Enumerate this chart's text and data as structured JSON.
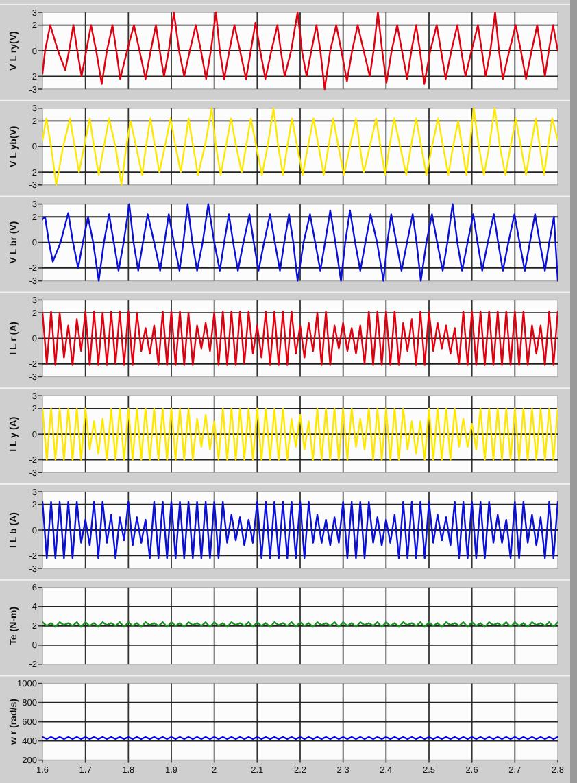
{
  "chart_data": [
    {
      "type": "line",
      "ylabel": "V L ry(V)",
      "xlim": [
        1.6,
        2.8
      ],
      "xticks": [
        1.6,
        1.7,
        1.8,
        1.9,
        2,
        2.1,
        2.2,
        2.3,
        2.4,
        2.5,
        2.6,
        2.7,
        2.8
      ],
      "ylim": [
        -3,
        3
      ],
      "yticks": [
        -3,
        -2,
        0,
        2,
        3
      ],
      "grid": true,
      "tick_labels": "y",
      "x": [
        1.6,
        1.606,
        1.618,
        1.636,
        1.653,
        1.662,
        1.672,
        1.681,
        1.691,
        1.702,
        1.713,
        1.725,
        1.738,
        1.75,
        1.763,
        1.772,
        1.781,
        1.797,
        1.813,
        1.826,
        1.84,
        1.852,
        1.864,
        1.873,
        1.883,
        1.894,
        1.906,
        1.918,
        1.93,
        1.943,
        1.957,
        1.969,
        1.981,
        1.992,
        2.004,
        2.013,
        2.023,
        2.035,
        2.047,
        2.06,
        2.074,
        2.085,
        2.096,
        2.107,
        2.119,
        2.133,
        2.147,
        2.155,
        2.164,
        2.179,
        2.194,
        2.204,
        2.215,
        2.226,
        2.238,
        2.247,
        2.257,
        2.27,
        2.284,
        2.296,
        2.309,
        2.321,
        2.334,
        2.348,
        2.362,
        2.371,
        2.381,
        2.391,
        2.401,
        2.413,
        2.426,
        2.437,
        2.449,
        2.459,
        2.47,
        2.479,
        2.489,
        2.503,
        2.518,
        2.528,
        2.539,
        2.552,
        2.566,
        2.575,
        2.585,
        2.599,
        2.614,
        2.623,
        2.632,
        2.643,
        2.654,
        2.663,
        2.672,
        2.687,
        2.702,
        2.714,
        2.726,
        2.739,
        2.752,
        2.761,
        2.77,
        2.779,
        2.789,
        2.8
      ],
      "series": [
        {
          "color": "#e00010",
          "values": [
            -1.8,
            0,
            2,
            0,
            -1.5,
            0,
            2,
            0,
            -2,
            0,
            2,
            0,
            -2.6,
            0,
            2,
            0,
            -2.2,
            0,
            2,
            0,
            -2.2,
            0,
            2,
            0,
            -2,
            0,
            3,
            0,
            -2,
            0,
            2,
            0,
            -2.2,
            0,
            3,
            0,
            -2.2,
            0,
            2,
            0,
            -2.2,
            0,
            2.2,
            0,
            -2.2,
            0,
            2,
            0,
            -2,
            0,
            3,
            0,
            -2,
            0,
            2,
            0,
            -3,
            0,
            2,
            0,
            -2.4,
            0,
            2,
            0,
            -2,
            0,
            3,
            0,
            -2.5,
            0,
            2,
            0,
            -2.2,
            0,
            2,
            0,
            -2.6,
            0,
            2,
            0,
            -2.2,
            0,
            2,
            0,
            -2,
            0,
            2,
            0,
            -2,
            0,
            3,
            0,
            -2.2,
            0,
            2,
            0,
            -2.2,
            0,
            2,
            0,
            -2,
            0,
            2,
            0
          ]
        }
      ]
    },
    {
      "type": "line",
      "ylabel": "V L yb(V)",
      "xlim": [
        1.6,
        2.8
      ],
      "xticks": [
        1.6,
        1.7,
        1.8,
        1.9,
        2,
        2.1,
        2.2,
        2.3,
        2.4,
        2.5,
        2.6,
        2.7,
        2.8
      ],
      "ylim": [
        -3,
        3
      ],
      "yticks": [
        -3,
        -2,
        0,
        2,
        3
      ],
      "grid": true,
      "tick_labels": "y",
      "x": [
        1.6,
        1.609,
        1.62,
        1.632,
        1.648,
        1.664,
        1.675,
        1.685,
        1.697,
        1.71,
        1.72,
        1.731,
        1.743,
        1.755,
        1.77,
        1.784,
        1.795,
        1.805,
        1.818,
        1.832,
        1.841,
        1.851,
        1.862,
        1.872,
        1.885,
        1.898,
        1.91,
        1.922,
        1.931,
        1.94,
        1.951,
        1.962,
        1.978,
        1.994,
        2.004,
        2.015,
        2.027,
        2.039,
        2.051,
        2.064,
        2.074,
        2.085,
        2.098,
        2.111,
        2.124,
        2.138,
        2.149,
        2.16,
        2.17,
        2.181,
        2.193,
        2.206,
        2.218,
        2.231,
        2.243,
        2.255,
        2.266,
        2.277,
        2.289,
        2.302,
        2.316,
        2.33,
        2.339,
        2.348,
        2.362,
        2.377,
        2.387,
        2.398,
        2.408,
        2.419,
        2.433,
        2.447,
        2.458,
        2.47,
        2.482,
        2.494,
        2.507,
        2.521,
        2.533,
        2.545,
        2.556,
        2.568,
        2.577,
        2.587,
        2.595,
        2.604,
        2.616,
        2.628,
        2.64,
        2.653,
        2.665,
        2.678,
        2.69,
        2.702,
        2.714,
        2.726,
        2.737,
        2.749,
        2.758,
        2.768,
        2.777,
        2.787,
        2.8
      ],
      "series": [
        {
          "color": "#ffe800",
          "values": [
            0.5,
            2.2,
            0,
            -3,
            0,
            2.2,
            0,
            -2,
            0,
            2.2,
            0,
            -2.2,
            0,
            2.2,
            0,
            -3,
            0,
            2,
            0,
            -2.2,
            0,
            2.2,
            0,
            -2,
            0,
            2.2,
            0,
            -2,
            0,
            2.2,
            0,
            -2.2,
            0,
            3,
            0,
            -2.2,
            0,
            2.2,
            0,
            -2,
            0,
            2.2,
            0,
            -2.2,
            0,
            3,
            0,
            -2.2,
            0,
            2.2,
            0,
            -2.2,
            0,
            2.2,
            0,
            -2.2,
            0,
            2.2,
            0,
            -2.2,
            0,
            2.2,
            0,
            -2,
            0,
            2.2,
            0,
            -2.2,
            0,
            2.2,
            0,
            -2.2,
            0,
            2.2,
            0,
            -2.2,
            0,
            2.2,
            0,
            -2.2,
            0,
            2,
            0,
            -2.2,
            0,
            3,
            0,
            -2.2,
            0,
            3,
            0,
            -2.2,
            0,
            2.2,
            0,
            -2.2,
            0,
            2.2,
            0,
            -2.2,
            0,
            2.2,
            0.5
          ]
        }
      ]
    },
    {
      "type": "line",
      "ylabel": "V L br (V)",
      "xlim": [
        1.6,
        2.8
      ],
      "xticks": [
        1.6,
        1.7,
        1.8,
        1.9,
        2,
        2.1,
        2.2,
        2.3,
        2.4,
        2.5,
        2.6,
        2.7,
        2.8
      ],
      "ylim": [
        -3,
        3
      ],
      "yticks": [
        -3,
        -2,
        0,
        2,
        3
      ],
      "grid": true,
      "tick_labels": "y",
      "x": [
        1.6,
        1.606,
        1.615,
        1.624,
        1.642,
        1.66,
        1.671,
        1.683,
        1.694,
        1.706,
        1.718,
        1.731,
        1.743,
        1.755,
        1.766,
        1.777,
        1.789,
        1.802,
        1.812,
        1.823,
        1.834,
        1.845,
        1.86,
        1.874,
        1.884,
        1.894,
        1.906,
        1.919,
        1.928,
        1.938,
        1.949,
        1.96,
        1.973,
        1.986,
        2,
        2.013,
        2.023,
        2.034,
        2.044,
        2.055,
        2.068,
        2.082,
        2.092,
        2.103,
        2.116,
        2.13,
        2.141,
        2.153,
        2.163,
        2.174,
        2.184,
        2.194,
        2.208,
        2.223,
        2.235,
        2.247,
        2.258,
        2.27,
        2.282,
        2.295,
        2.305,
        2.316,
        2.328,
        2.34,
        2.352,
        2.364,
        2.379,
        2.394,
        2.403,
        2.412,
        2.424,
        2.436,
        2.449,
        2.462,
        2.471,
        2.481,
        2.494,
        2.507,
        2.519,
        2.532,
        2.543,
        2.555,
        2.566,
        2.577,
        2.59,
        2.603,
        2.613,
        2.624,
        2.637,
        2.651,
        2.661,
        2.672,
        2.685,
        2.699,
        2.711,
        2.723,
        2.735,
        2.747,
        2.758,
        2.77,
        2.78,
        2.791,
        2.8
      ],
      "series": [
        {
          "color": "#0a10d8",
          "values": [
            1.8,
            2,
            0,
            -1.5,
            0,
            2.3,
            0,
            -2,
            0,
            2,
            0,
            -3,
            0,
            2.2,
            0,
            -2.2,
            0,
            3,
            0,
            -2.2,
            0,
            2.2,
            0,
            -2.2,
            0,
            2.2,
            0,
            -2.2,
            0,
            3,
            0,
            -2.2,
            0,
            3,
            0,
            -2.2,
            0,
            2.2,
            0,
            -2.2,
            0,
            2.2,
            0,
            -2.2,
            0,
            2.2,
            0,
            -2.2,
            0,
            2.2,
            0,
            -3,
            0,
            2.2,
            0,
            -2.2,
            0,
            2.5,
            0,
            -3,
            0,
            2.5,
            0,
            -2.2,
            0,
            2.2,
            0,
            -3,
            0,
            2.2,
            0,
            -2.2,
            0,
            2.2,
            0,
            -3,
            0,
            2.2,
            0,
            -2.2,
            0,
            3,
            0,
            -2.2,
            0,
            2.2,
            0,
            -2.2,
            0,
            2.2,
            0,
            -2.2,
            0,
            2.2,
            0,
            -2.2,
            0,
            2.2,
            0,
            -2.2,
            0,
            2,
            -3
          ]
        }
      ]
    },
    {
      "type": "line",
      "ylabel": "I L r (A)",
      "xlim": [
        1.6,
        2.8
      ],
      "xticks": [
        1.6,
        1.7,
        1.8,
        1.9,
        2,
        2.1,
        2.2,
        2.3,
        2.4,
        2.5,
        2.6,
        2.7,
        2.8
      ],
      "ylim": [
        -3,
        3
      ],
      "yticks": [
        -3,
        -2,
        0,
        2,
        3
      ],
      "grid": true,
      "tick_labels": "y",
      "x": [
        1.6,
        1.61,
        1.62,
        1.63,
        1.64,
        1.65,
        1.66,
        1.67,
        1.68,
        1.69,
        1.7,
        1.71,
        1.72,
        1.73,
        1.74,
        1.75,
        1.76,
        1.77,
        1.78,
        1.79,
        1.8,
        1.81,
        1.82,
        1.83,
        1.84,
        1.85,
        1.86,
        1.87,
        1.88,
        1.89,
        1.9,
        1.91,
        1.92,
        1.93,
        1.94,
        1.95,
        1.96,
        1.97,
        1.98,
        1.99,
        2,
        2.01,
        2.02,
        2.03,
        2.04,
        2.05,
        2.06,
        2.07,
        2.08,
        2.09,
        2.1,
        2.11,
        2.12,
        2.13,
        2.14,
        2.15,
        2.16,
        2.17,
        2.18,
        2.19,
        2.2,
        2.21,
        2.22,
        2.23,
        2.24,
        2.25,
        2.26,
        2.27,
        2.28,
        2.29,
        2.3,
        2.31,
        2.32,
        2.33,
        2.34,
        2.35,
        2.36,
        2.37,
        2.38,
        2.39,
        2.4,
        2.41,
        2.42,
        2.43,
        2.44,
        2.45,
        2.46,
        2.47,
        2.48,
        2.49,
        2.5,
        2.51,
        2.52,
        2.53,
        2.54,
        2.55,
        2.56,
        2.57,
        2.58,
        2.59,
        2.6,
        2.61,
        2.62,
        2.63,
        2.64,
        2.65,
        2.66,
        2.67,
        2.68,
        2.69,
        2.7,
        2.71,
        2.72,
        2.73,
        2.74,
        2.75,
        2.76,
        2.77,
        2.78,
        2.79,
        2.8
      ],
      "series": [
        {
          "color": "#e00010",
          "values": [
            2,
            -2,
            2.1,
            -2.1,
            2,
            -1.5,
            1,
            -2.1,
            1.5,
            -1,
            2.1,
            -2.1,
            2.1,
            -2.1,
            2,
            -2.1,
            2.1,
            -2,
            2.1,
            -2.1,
            2.1,
            -2.1,
            2,
            -1,
            0.8,
            -1.2,
            1,
            -2.1,
            2.1,
            -2.1,
            2.1,
            -2.1,
            2.1,
            -2.1,
            2,
            -2.1,
            1,
            -0.8,
            1.2,
            -1,
            2,
            -2.1,
            2.1,
            -2.1,
            2.1,
            -2.1,
            2.1,
            -2,
            2.1,
            -1.2,
            1,
            -1.5,
            2.1,
            -2.1,
            2.1,
            -2.1,
            2.1,
            -2.1,
            2.1,
            -1.2,
            1,
            -1.5,
            1.2,
            -1,
            2,
            -2.1,
            2.1,
            -2.1,
            1,
            -0.8,
            1.2,
            -1,
            0.8,
            -1.2,
            1,
            -2,
            2.1,
            -2.1,
            2.1,
            -2.1,
            2.1,
            -2.1,
            2.1,
            -2.1,
            1.2,
            -1,
            1.5,
            -2.1,
            2.1,
            -2.1,
            2.1,
            -1,
            1.2,
            -0.8,
            1,
            -1.2,
            0.8,
            -2,
            2.1,
            -2.1,
            2.1,
            -2.1,
            2.1,
            -2.1,
            2.1,
            -2.1,
            2.1,
            -2.1,
            2.1,
            -2.1,
            2.1,
            -2.1,
            2.1,
            -2.1,
            1,
            -1.2,
            1,
            -2.1,
            2.1,
            -2.1,
            2.1
          ]
        }
      ]
    },
    {
      "type": "line",
      "ylabel": "I L y (A)",
      "xlim": [
        1.6,
        2.8
      ],
      "xticks": [
        1.6,
        1.7,
        1.8,
        1.9,
        2,
        2.1,
        2.2,
        2.3,
        2.4,
        2.5,
        2.6,
        2.7,
        2.8
      ],
      "ylim": [
        -3,
        3
      ],
      "yticks": [
        -3,
        -2,
        0,
        2,
        3
      ],
      "grid": true,
      "tick_labels": "y",
      "x": [
        1.6,
        1.61,
        1.62,
        1.63,
        1.64,
        1.65,
        1.66,
        1.67,
        1.68,
        1.69,
        1.7,
        1.71,
        1.72,
        1.73,
        1.74,
        1.75,
        1.76,
        1.77,
        1.78,
        1.79,
        1.8,
        1.81,
        1.82,
        1.83,
        1.84,
        1.85,
        1.86,
        1.87,
        1.88,
        1.89,
        1.9,
        1.91,
        1.92,
        1.93,
        1.94,
        1.95,
        1.96,
        1.97,
        1.98,
        1.99,
        2,
        2.01,
        2.02,
        2.03,
        2.04,
        2.05,
        2.06,
        2.07,
        2.08,
        2.09,
        2.1,
        2.11,
        2.12,
        2.13,
        2.14,
        2.15,
        2.16,
        2.17,
        2.18,
        2.19,
        2.2,
        2.21,
        2.22,
        2.23,
        2.24,
        2.25,
        2.26,
        2.27,
        2.28,
        2.29,
        2.3,
        2.31,
        2.32,
        2.33,
        2.34,
        2.35,
        2.36,
        2.37,
        2.38,
        2.39,
        2.4,
        2.41,
        2.42,
        2.43,
        2.44,
        2.45,
        2.46,
        2.47,
        2.48,
        2.49,
        2.5,
        2.51,
        2.52,
        2.53,
        2.54,
        2.55,
        2.56,
        2.57,
        2.58,
        2.59,
        2.6,
        2.61,
        2.62,
        2.63,
        2.64,
        2.65,
        2.66,
        2.67,
        2.68,
        2.69,
        2.7,
        2.71,
        2.72,
        2.73,
        2.74,
        2.75,
        2.76,
        2.77,
        2.78,
        2.79,
        2.8
      ],
      "series": [
        {
          "color": "#ffe800",
          "values": [
            2,
            -2,
            2,
            -2,
            2,
            -2,
            2,
            -2,
            2,
            -2,
            2,
            -1.2,
            1,
            -1.5,
            1.2,
            -2,
            2,
            -2,
            2,
            -2,
            2,
            -2,
            2,
            -2,
            2,
            -2,
            2,
            -2,
            2,
            -2,
            2,
            -2,
            2,
            -2,
            2,
            -2,
            1.2,
            -1,
            1.5,
            -1.2,
            1,
            -2,
            2,
            -2,
            2,
            -2,
            2,
            -2,
            2,
            -2,
            2,
            -2,
            2,
            -2,
            2,
            -2,
            2,
            -2,
            1.2,
            -1,
            1.5,
            -1.2,
            1,
            -2,
            2,
            -2,
            2,
            -2,
            2,
            -2,
            2,
            -2,
            2,
            -1,
            1.2,
            -1.2,
            2,
            -2,
            2,
            -2,
            2,
            -2,
            2,
            -2,
            2,
            -1.2,
            1,
            -1.5,
            1,
            -2,
            2,
            -2,
            2,
            -2,
            2,
            -2,
            2,
            -1,
            1.2,
            -1,
            0.8,
            -1.2,
            2,
            -2,
            2,
            -2,
            2,
            -2,
            2,
            -2,
            2,
            -2,
            2,
            -2,
            2,
            -2,
            2,
            -2,
            2,
            -2,
            2
          ]
        }
      ]
    },
    {
      "type": "line",
      "ylabel": "I L b (A)",
      "xlim": [
        1.6,
        2.8
      ],
      "xticks": [
        1.6,
        1.7,
        1.8,
        1.9,
        2,
        2.1,
        2.2,
        2.3,
        2.4,
        2.5,
        2.6,
        2.7,
        2.8
      ],
      "ylim": [
        -3,
        3
      ],
      "yticks": [
        -3,
        -2,
        0,
        2,
        3
      ],
      "grid": true,
      "tick_labels": "y",
      "x": [
        1.6,
        1.61,
        1.62,
        1.63,
        1.64,
        1.65,
        1.66,
        1.67,
        1.68,
        1.69,
        1.7,
        1.71,
        1.72,
        1.73,
        1.74,
        1.75,
        1.76,
        1.77,
        1.78,
        1.79,
        1.8,
        1.81,
        1.82,
        1.83,
        1.84,
        1.85,
        1.86,
        1.87,
        1.88,
        1.89,
        1.9,
        1.91,
        1.92,
        1.93,
        1.94,
        1.95,
        1.96,
        1.97,
        1.98,
        1.99,
        2,
        2.01,
        2.02,
        2.03,
        2.04,
        2.05,
        2.06,
        2.07,
        2.08,
        2.09,
        2.1,
        2.11,
        2.12,
        2.13,
        2.14,
        2.15,
        2.16,
        2.17,
        2.18,
        2.19,
        2.2,
        2.21,
        2.22,
        2.23,
        2.24,
        2.25,
        2.26,
        2.27,
        2.28,
        2.29,
        2.3,
        2.31,
        2.32,
        2.33,
        2.34,
        2.35,
        2.36,
        2.37,
        2.38,
        2.39,
        2.4,
        2.41,
        2.42,
        2.43,
        2.44,
        2.45,
        2.46,
        2.47,
        2.48,
        2.49,
        2.5,
        2.51,
        2.52,
        2.53,
        2.54,
        2.55,
        2.56,
        2.57,
        2.58,
        2.59,
        2.6,
        2.61,
        2.62,
        2.63,
        2.64,
        2.65,
        2.66,
        2.67,
        2.68,
        2.69,
        2.7,
        2.71,
        2.72,
        2.73,
        2.74,
        2.75,
        2.76,
        2.77,
        2.78,
        2.79,
        2.8
      ],
      "series": [
        {
          "color": "#0a10d8",
          "values": [
            2.2,
            -2.2,
            2.2,
            -2.2,
            2.2,
            -2.2,
            2.2,
            -2.2,
            2.2,
            -1,
            0.8,
            -1.2,
            2.2,
            -2.2,
            2.2,
            -1,
            1.2,
            -2.2,
            1,
            -0.8,
            2.2,
            -1.2,
            1,
            -1,
            0.8,
            -2.2,
            2.2,
            -2.2,
            2.2,
            -2.2,
            2.2,
            -2.2,
            2.2,
            -2.2,
            2.2,
            -2.2,
            2.2,
            -2.2,
            2.2,
            -2.2,
            2.2,
            -2.2,
            2.2,
            -1,
            1.2,
            -0.8,
            1,
            -1.2,
            0.8,
            -1,
            2.2,
            -2.2,
            2.2,
            -2.2,
            2.2,
            -2.2,
            2.2,
            -2.2,
            2.2,
            -2.2,
            2.2,
            -2.2,
            2.2,
            -1,
            1.2,
            -1,
            0.8,
            -1.2,
            1,
            -1,
            2.2,
            -2.2,
            2.2,
            -2.2,
            2.2,
            -2.2,
            2.2,
            -1,
            1,
            -1.2,
            0.8,
            -1,
            1.2,
            -2.2,
            2.2,
            -2.2,
            2.2,
            -2.2,
            2.2,
            -2.2,
            2.2,
            -1,
            1.2,
            -0.8,
            1,
            -1.2,
            2.2,
            -2.2,
            2.2,
            -2.2,
            2.2,
            -2.2,
            2.2,
            -2.2,
            2.2,
            -1,
            1.2,
            -1,
            0.8,
            -2.2,
            2.2,
            -2.2,
            2.2,
            -1,
            1.2,
            -1.2,
            1,
            -2.2,
            2.2,
            -2.2,
            2.2
          ]
        }
      ]
    },
    {
      "type": "line",
      "ylabel": "Te (N-m)",
      "xlim": [
        1.6,
        2.8
      ],
      "xticks": [
        1.6,
        1.7,
        1.8,
        1.9,
        2,
        2.1,
        2.2,
        2.3,
        2.4,
        2.5,
        2.6,
        2.7,
        2.8
      ],
      "ylim": [
        -2,
        6
      ],
      "yticks": [
        -2,
        0,
        2,
        4,
        6
      ],
      "grid": true,
      "tick_labels": "y",
      "x": [
        1.6,
        1.61,
        1.62,
        1.63,
        1.64,
        1.65,
        1.66,
        1.67,
        1.68,
        1.69,
        1.7,
        1.71,
        1.72,
        1.73,
        1.74,
        1.75,
        1.76,
        1.77,
        1.78,
        1.79,
        1.8,
        1.81,
        1.82,
        1.83,
        1.84,
        1.85,
        1.86,
        1.87,
        1.88,
        1.89,
        1.9,
        1.91,
        1.92,
        1.93,
        1.94,
        1.95,
        1.96,
        1.97,
        1.98,
        1.99,
        2,
        2.01,
        2.02,
        2.03,
        2.04,
        2.05,
        2.06,
        2.07,
        2.08,
        2.09,
        2.1,
        2.11,
        2.12,
        2.13,
        2.14,
        2.15,
        2.16,
        2.17,
        2.18,
        2.19,
        2.2,
        2.21,
        2.22,
        2.23,
        2.24,
        2.25,
        2.26,
        2.27,
        2.28,
        2.29,
        2.3,
        2.31,
        2.32,
        2.33,
        2.34,
        2.35,
        2.36,
        2.37,
        2.38,
        2.39,
        2.4,
        2.41,
        2.42,
        2.43,
        2.44,
        2.45,
        2.46,
        2.47,
        2.48,
        2.49,
        2.5,
        2.51,
        2.52,
        2.53,
        2.54,
        2.55,
        2.56,
        2.57,
        2.58,
        2.59,
        2.6,
        2.61,
        2.62,
        2.63,
        2.64,
        2.65,
        2.66,
        2.67,
        2.68,
        2.69,
        2.7,
        2.71,
        2.72,
        2.73,
        2.74,
        2.75,
        2.76,
        2.77,
        2.78,
        2.79,
        2.8
      ],
      "series": [
        {
          "color": "#1a9020",
          "values": [
            2.4,
            2,
            2.3,
            1.9,
            2.4,
            2.1,
            2.3,
            2,
            2.4,
            1.9,
            2.4,
            2,
            2.3,
            1.9,
            2.4,
            2.1,
            2.3,
            2,
            2.4,
            1.9,
            2.4,
            2,
            2.3,
            1.9,
            2.4,
            2.1,
            2.3,
            2,
            2.4,
            1.9,
            2.4,
            2,
            2.3,
            1.9,
            2.4,
            2.1,
            2.3,
            2,
            2.4,
            1.9,
            2.4,
            2,
            2.3,
            1.9,
            2.4,
            2.1,
            2.3,
            2,
            2.4,
            1.9,
            2.4,
            2,
            2.3,
            1.9,
            2.4,
            2.1,
            2.3,
            2,
            2.4,
            1.9,
            2.4,
            2,
            2.3,
            1.9,
            2.4,
            2.1,
            2.3,
            2,
            2.4,
            1.9,
            2.4,
            2,
            2.3,
            1.9,
            2.4,
            2.1,
            2.3,
            2,
            2.4,
            1.9,
            2.4,
            2,
            2.3,
            1.9,
            2.4,
            2.1,
            2.3,
            2,
            2.4,
            1.9,
            2.4,
            2,
            2.3,
            1.9,
            2.4,
            2.1,
            2.3,
            2,
            2.4,
            1.9,
            2.4,
            2,
            2.3,
            1.9,
            2.4,
            2.1,
            2.3,
            2,
            2.4,
            1.9,
            2.4,
            2,
            2.3,
            1.9,
            2.4,
            2.1,
            2.3,
            2,
            2.4,
            1.9,
            2.4
          ]
        }
      ]
    },
    {
      "type": "line",
      "ylabel": "w r (rad/s)",
      "xlim": [
        1.6,
        2.8
      ],
      "xticks": [
        1.6,
        1.7,
        1.8,
        1.9,
        2,
        2.1,
        2.2,
        2.3,
        2.4,
        2.5,
        2.6,
        2.7,
        2.8
      ],
      "ylim": [
        200,
        1000
      ],
      "yticks": [
        200,
        400,
        600,
        800,
        1000
      ],
      "grid": true,
      "x": [
        1.6,
        1.61,
        1.62,
        1.63,
        1.64,
        1.65,
        1.66,
        1.67,
        1.68,
        1.69,
        1.7,
        1.71,
        1.72,
        1.73,
        1.74,
        1.75,
        1.76,
        1.77,
        1.78,
        1.79,
        1.8,
        1.81,
        1.82,
        1.83,
        1.84,
        1.85,
        1.86,
        1.87,
        1.88,
        1.89,
        1.9,
        1.91,
        1.92,
        1.93,
        1.94,
        1.95,
        1.96,
        1.97,
        1.98,
        1.99,
        2,
        2.01,
        2.02,
        2.03,
        2.04,
        2.05,
        2.06,
        2.07,
        2.08,
        2.09,
        2.1,
        2.11,
        2.12,
        2.13,
        2.14,
        2.15,
        2.16,
        2.17,
        2.18,
        2.19,
        2.2,
        2.21,
        2.22,
        2.23,
        2.24,
        2.25,
        2.26,
        2.27,
        2.28,
        2.29,
        2.3,
        2.31,
        2.32,
        2.33,
        2.34,
        2.35,
        2.36,
        2.37,
        2.38,
        2.39,
        2.4,
        2.41,
        2.42,
        2.43,
        2.44,
        2.45,
        2.46,
        2.47,
        2.48,
        2.49,
        2.5,
        2.51,
        2.52,
        2.53,
        2.54,
        2.55,
        2.56,
        2.57,
        2.58,
        2.59,
        2.6,
        2.61,
        2.62,
        2.63,
        2.64,
        2.65,
        2.66,
        2.67,
        2.68,
        2.69,
        2.7,
        2.71,
        2.72,
        2.73,
        2.74,
        2.75,
        2.76,
        2.77,
        2.78,
        2.79,
        2.8
      ],
      "series": [
        {
          "color": "#0000f0",
          "values": [
            440,
            420,
            440,
            420,
            440,
            420,
            440,
            420,
            440,
            420,
            440,
            420,
            440,
            420,
            440,
            420,
            440,
            420,
            440,
            420,
            440,
            420,
            440,
            420,
            440,
            420,
            440,
            420,
            440,
            420,
            440,
            420,
            440,
            420,
            440,
            420,
            440,
            420,
            440,
            420,
            440,
            420,
            440,
            420,
            440,
            420,
            440,
            420,
            440,
            420,
            440,
            420,
            440,
            420,
            440,
            420,
            440,
            420,
            440,
            420,
            440,
            420,
            440,
            420,
            440,
            420,
            440,
            420,
            440,
            420,
            440,
            420,
            440,
            420,
            440,
            420,
            440,
            420,
            440,
            420,
            440,
            420,
            440,
            420,
            440,
            420,
            440,
            420,
            440,
            420,
            440,
            420,
            440,
            420,
            440,
            420,
            440,
            420,
            440,
            420,
            440,
            420,
            440,
            420,
            440,
            420,
            440,
            420,
            440,
            420,
            440,
            420,
            440,
            420,
            440,
            420,
            440,
            420,
            440,
            420,
            440
          ]
        }
      ]
    }
  ]
}
